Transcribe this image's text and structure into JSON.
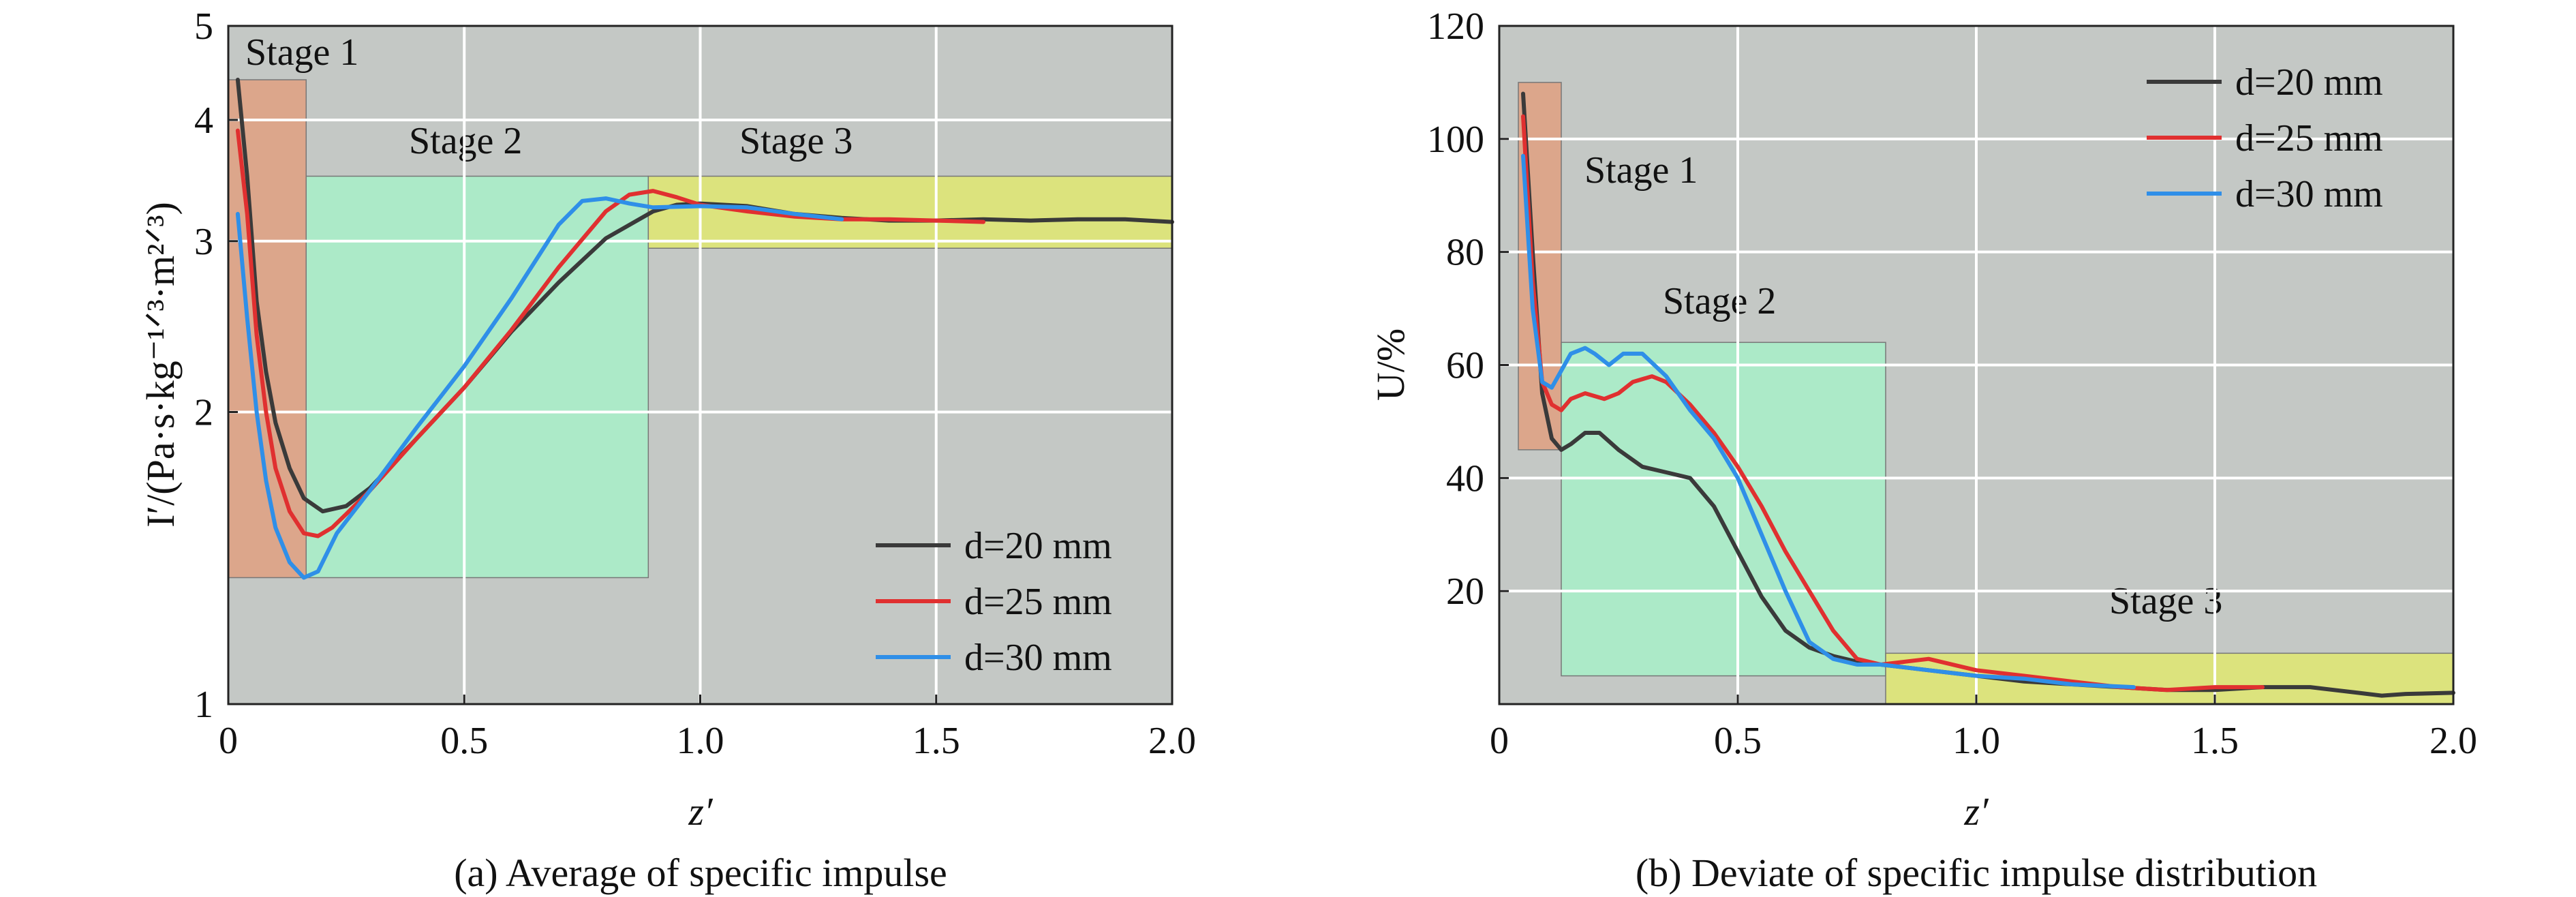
{
  "chart_data": [
    {
      "type": "line",
      "caption": "(a) Average of specific impulse",
      "xlabel": "z′",
      "ylabel": "I′/(Pa·s·kg⁻¹ᐟ³·m²ᐟ³)",
      "xlim": [
        0,
        2.0
      ],
      "ylim": [
        1,
        5
      ],
      "yscale": "log",
      "grid": true,
      "legend_position": "bottom-right",
      "x_ticks": [
        "0",
        "0.5",
        "1.0",
        "1.5",
        "2.0"
      ],
      "y_ticks": [
        "1",
        "2",
        "3",
        "4",
        "5"
      ],
      "stages": [
        {
          "label": "Stage 1",
          "x": [
            0.0,
            0.165
          ],
          "y": [
            1.35,
            4.4
          ],
          "color": "#e0a080"
        },
        {
          "label": "Stage 2",
          "x": [
            0.165,
            0.89
          ],
          "y": [
            1.35,
            3.5
          ],
          "color": "#a8f0c8"
        },
        {
          "label": "Stage 3",
          "x": [
            0.89,
            2.0
          ],
          "y": [
            2.95,
            3.5
          ],
          "color": "#e0e870"
        }
      ],
      "series": [
        {
          "name": "d=20 mm",
          "color": "#3a3a3a",
          "x": [
            0.02,
            0.04,
            0.06,
            0.08,
            0.1,
            0.13,
            0.16,
            0.2,
            0.25,
            0.3,
            0.4,
            0.5,
            0.6,
            0.7,
            0.8,
            0.9,
            0.95,
            1.0,
            1.1,
            1.2,
            1.3,
            1.4,
            1.5,
            1.6,
            1.7,
            1.8,
            1.9,
            2.0
          ],
          "y": [
            4.4,
            3.5,
            2.6,
            2.2,
            1.95,
            1.75,
            1.63,
            1.58,
            1.6,
            1.67,
            1.88,
            2.12,
            2.42,
            2.72,
            3.02,
            3.22,
            3.27,
            3.28,
            3.26,
            3.2,
            3.17,
            3.15,
            3.15,
            3.16,
            3.15,
            3.16,
            3.16,
            3.14
          ]
        },
        {
          "name": "d=25 mm",
          "color": "#e03030",
          "x": [
            0.02,
            0.04,
            0.06,
            0.08,
            0.1,
            0.13,
            0.16,
            0.19,
            0.22,
            0.25,
            0.3,
            0.4,
            0.5,
            0.6,
            0.7,
            0.8,
            0.85,
            0.9,
            0.95,
            1.0,
            1.1,
            1.2,
            1.3,
            1.4,
            1.5,
            1.6
          ],
          "y": [
            3.9,
            3.2,
            2.4,
            2.0,
            1.75,
            1.58,
            1.5,
            1.49,
            1.52,
            1.57,
            1.66,
            1.88,
            2.12,
            2.43,
            2.82,
            3.22,
            3.35,
            3.38,
            3.33,
            3.27,
            3.22,
            3.18,
            3.16,
            3.16,
            3.15,
            3.14
          ]
        },
        {
          "name": "d=30 mm",
          "color": "#2f8fe8",
          "x": [
            0.02,
            0.04,
            0.06,
            0.08,
            0.1,
            0.13,
            0.16,
            0.19,
            0.23,
            0.3,
            0.4,
            0.5,
            0.6,
            0.7,
            0.75,
            0.8,
            0.85,
            0.9,
            1.0,
            1.1,
            1.2,
            1.3
          ],
          "y": [
            3.2,
            2.5,
            2.0,
            1.7,
            1.52,
            1.4,
            1.35,
            1.37,
            1.5,
            1.66,
            1.93,
            2.23,
            2.62,
            3.12,
            3.3,
            3.32,
            3.28,
            3.25,
            3.26,
            3.25,
            3.2,
            3.16
          ]
        }
      ]
    },
    {
      "type": "line",
      "caption": "(b) Deviate of specific impulse distribution",
      "xlabel": "z′",
      "ylabel": "U/%",
      "xlim": [
        0,
        2.0
      ],
      "ylim": [
        0,
        120
      ],
      "yscale": "linear",
      "grid": true,
      "legend_position": "top-right",
      "x_ticks": [
        "0",
        "0.5",
        "1.0",
        "1.5",
        "2.0"
      ],
      "y_ticks": [
        "20",
        "40",
        "60",
        "80",
        "100",
        "120"
      ],
      "stages": [
        {
          "label": "Stage 1",
          "x": [
            0.04,
            0.13
          ],
          "y": [
            45,
            110
          ],
          "color": "#e0a080"
        },
        {
          "label": "Stage 2",
          "x": [
            0.13,
            0.81
          ],
          "y": [
            5,
            64
          ],
          "color": "#a8f0c8"
        },
        {
          "label": "Stage 3",
          "x": [
            0.81,
            2.0
          ],
          "y": [
            0,
            9
          ],
          "color": "#e0e870"
        }
      ],
      "series": [
        {
          "name": "d=20 mm",
          "color": "#3a3a3a",
          "x": [
            0.05,
            0.07,
            0.09,
            0.11,
            0.13,
            0.15,
            0.18,
            0.21,
            0.25,
            0.3,
            0.35,
            0.4,
            0.45,
            0.5,
            0.55,
            0.6,
            0.65,
            0.7,
            0.75,
            0.8,
            0.9,
            1.0,
            1.1,
            1.2,
            1.3,
            1.4,
            1.5,
            1.6,
            1.7,
            1.8,
            1.85,
            1.9,
            2.0
          ],
          "y": [
            108,
            80,
            55,
            47,
            45,
            46,
            48,
            48,
            45,
            42,
            41,
            40,
            35,
            27,
            19,
            13,
            10,
            8.5,
            7.5,
            7,
            6,
            5,
            4,
            3.5,
            3,
            2.5,
            2.5,
            3,
            3,
            2,
            1.5,
            1.8,
            2
          ]
        },
        {
          "name": "d=25 mm",
          "color": "#e03030",
          "x": [
            0.05,
            0.07,
            0.09,
            0.11,
            0.13,
            0.15,
            0.18,
            0.22,
            0.25,
            0.28,
            0.32,
            0.35,
            0.4,
            0.45,
            0.5,
            0.55,
            0.6,
            0.65,
            0.7,
            0.75,
            0.8,
            0.85,
            0.9,
            1.0,
            1.1,
            1.2,
            1.3,
            1.4,
            1.5,
            1.6
          ],
          "y": [
            104,
            75,
            57,
            53,
            52,
            54,
            55,
            54,
            55,
            57,
            58,
            57,
            53,
            48,
            42,
            35,
            27,
            20,
            13,
            8,
            7,
            7.5,
            8,
            6,
            5,
            4,
            3,
            2.5,
            3,
            3
          ]
        },
        {
          "name": "d=30 mm",
          "color": "#2f8fe8",
          "x": [
            0.05,
            0.07,
            0.09,
            0.11,
            0.13,
            0.15,
            0.18,
            0.2,
            0.23,
            0.26,
            0.3,
            0.35,
            0.4,
            0.45,
            0.5,
            0.55,
            0.6,
            0.65,
            0.7,
            0.75,
            0.8,
            0.9,
            1.0,
            1.1,
            1.2,
            1.33
          ],
          "y": [
            97,
            70,
            57,
            56,
            59,
            62,
            63,
            62,
            60,
            62,
            62,
            58,
            52,
            47,
            40,
            30,
            20,
            11,
            8,
            7,
            7,
            6,
            5,
            4.5,
            3.5,
            3
          ]
        }
      ]
    }
  ]
}
